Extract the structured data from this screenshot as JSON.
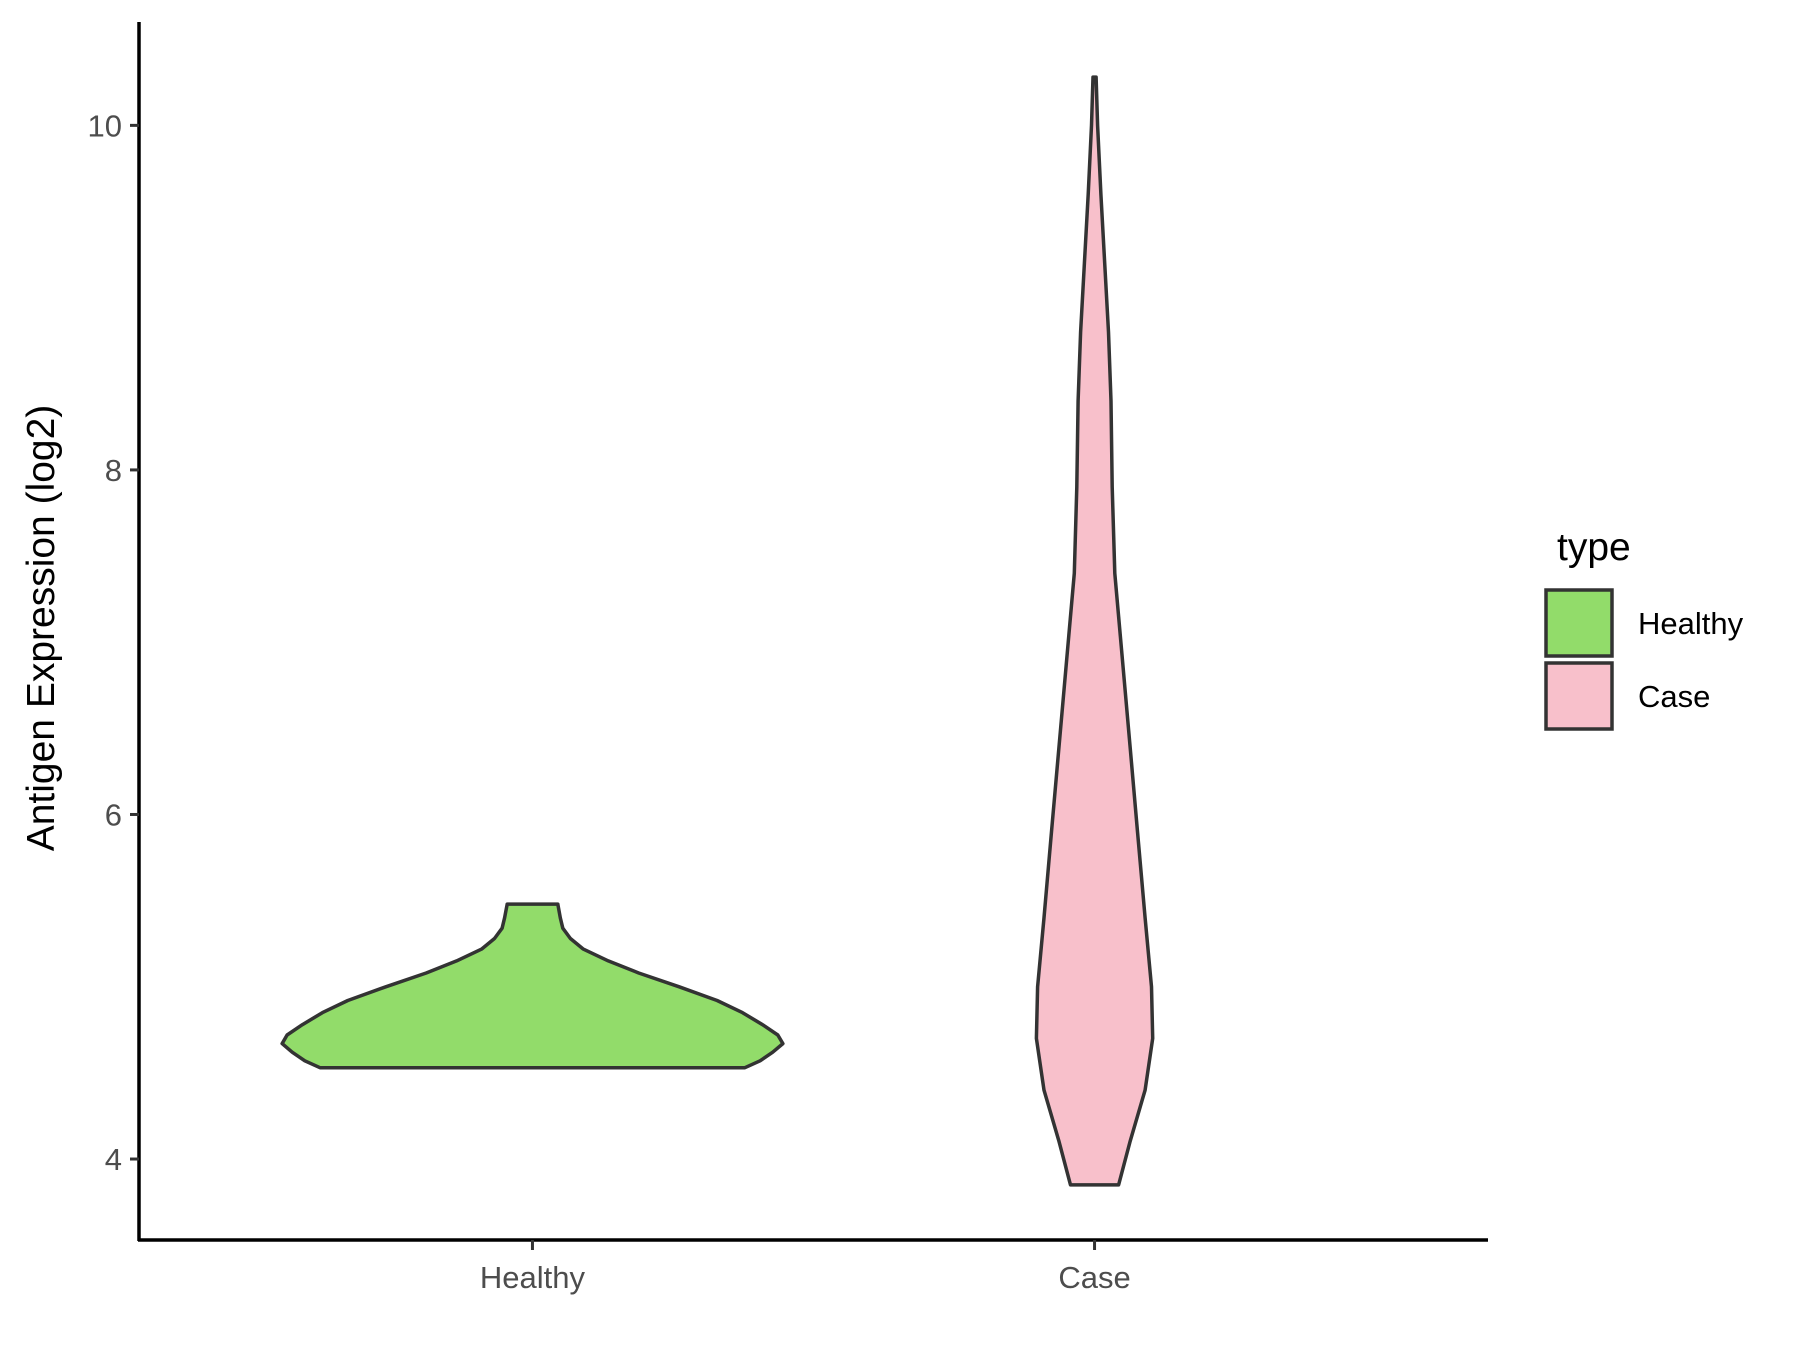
{
  "chart_data": {
    "type": "violin",
    "ylabel": "Antigen Expression (log2)",
    "xlabel": "",
    "ylim": [
      3.53,
      10.6
    ],
    "y_ticks": [
      "4",
      "6",
      "8",
      "10"
    ],
    "categories": [
      "Healthy",
      "Case"
    ],
    "legend": {
      "title": "type",
      "position": "right",
      "entries": [
        {
          "label": "Healthy",
          "color": "#92dc6a"
        },
        {
          "label": "Case",
          "color": "#f8c0cb"
        }
      ]
    },
    "grid": false,
    "series": [
      {
        "name": "Healthy",
        "color": "#92dc6a",
        "min": 4.53,
        "max": 5.48,
        "profile": [
          [
            4.53,
            0.84
          ],
          [
            4.57,
            0.9
          ],
          [
            4.62,
            0.95
          ],
          [
            4.67,
            0.99
          ],
          [
            4.72,
            0.97
          ],
          [
            4.78,
            0.91
          ],
          [
            4.85,
            0.83
          ],
          [
            4.92,
            0.73
          ],
          [
            5.0,
            0.58
          ],
          [
            5.08,
            0.42
          ],
          [
            5.15,
            0.3
          ],
          [
            5.22,
            0.2
          ],
          [
            5.28,
            0.15
          ],
          [
            5.34,
            0.12
          ],
          [
            5.4,
            0.11
          ],
          [
            5.48,
            0.1
          ]
        ]
      },
      {
        "name": "Case",
        "color": "#f8c0cb",
        "min": 3.85,
        "max": 10.28,
        "profile": [
          [
            3.85,
            0.095
          ],
          [
            4.1,
            0.14
          ],
          [
            4.4,
            0.2
          ],
          [
            4.7,
            0.23
          ],
          [
            5.0,
            0.225
          ],
          [
            5.4,
            0.2
          ],
          [
            5.9,
            0.17
          ],
          [
            6.4,
            0.14
          ],
          [
            6.9,
            0.11
          ],
          [
            7.4,
            0.08
          ],
          [
            7.9,
            0.07
          ],
          [
            8.4,
            0.065
          ],
          [
            8.8,
            0.055
          ],
          [
            9.2,
            0.04
          ],
          [
            9.6,
            0.025
          ],
          [
            10.0,
            0.012
          ],
          [
            10.28,
            0.006
          ]
        ]
      }
    ]
  }
}
